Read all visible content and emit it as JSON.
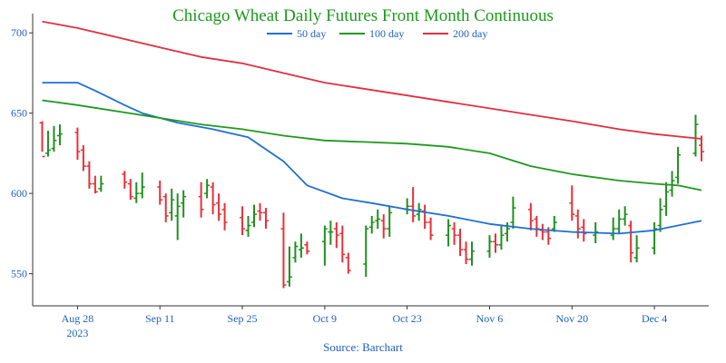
{
  "chart_data": {
    "type": "ohlc-line",
    "title": "Chicago Wheat Daily Futures Front Month Continuous",
    "source": "Source: Barchart",
    "ylim": [
      530,
      712
    ],
    "y_ticks": [
      "550",
      "600",
      "650",
      "700"
    ],
    "x_ticks": [
      {
        "date": "2023-08-28",
        "label": "Aug 28",
        "sublabel": "2023"
      },
      {
        "date": "2023-09-11",
        "label": "Sep 11",
        "sublabel": ""
      },
      {
        "date": "2023-09-25",
        "label": "Sep 25",
        "sublabel": ""
      },
      {
        "date": "2023-10-09",
        "label": "Oct 9",
        "sublabel": ""
      },
      {
        "date": "2023-10-23",
        "label": "Oct 23",
        "sublabel": ""
      },
      {
        "date": "2023-11-06",
        "label": "Nov 6",
        "sublabel": ""
      },
      {
        "date": "2023-11-20",
        "label": "Nov 20",
        "sublabel": ""
      },
      {
        "date": "2023-12-04",
        "label": "Dec 4",
        "sublabel": ""
      }
    ],
    "x_range": [
      "2023-08-21",
      "2023-12-12"
    ],
    "colors": {
      "up": "#1f8f1f",
      "down": "#e8303a",
      "axis": "#333333",
      "title": "#1a9a1a"
    },
    "grid": false,
    "legend_position": "top-center",
    "series": [
      {
        "name": "50 day",
        "color": "#1f6fd0",
        "points": [
          [
            "2023-08-22",
            669
          ],
          [
            "2023-08-28",
            669
          ],
          [
            "2023-08-31",
            664
          ],
          [
            "2023-09-05",
            655
          ],
          [
            "2023-09-08",
            650
          ],
          [
            "2023-09-14",
            644
          ],
          [
            "2023-09-20",
            640
          ],
          [
            "2023-09-26",
            635
          ],
          [
            "2023-10-02",
            620
          ],
          [
            "2023-10-06",
            605
          ],
          [
            "2023-10-12",
            597
          ],
          [
            "2023-10-17",
            594
          ],
          [
            "2023-10-23",
            590
          ],
          [
            "2023-10-30",
            586
          ],
          [
            "2023-11-06",
            581
          ],
          [
            "2023-11-13",
            578
          ],
          [
            "2023-11-20",
            576
          ],
          [
            "2023-11-28",
            575
          ],
          [
            "2023-12-04",
            577
          ],
          [
            "2023-12-12",
            583
          ]
        ]
      },
      {
        "name": "100 day",
        "color": "#1f9a1f",
        "points": [
          [
            "2023-08-22",
            658
          ],
          [
            "2023-08-28",
            655
          ],
          [
            "2023-09-04",
            651
          ],
          [
            "2023-09-11",
            647
          ],
          [
            "2023-09-18",
            643
          ],
          [
            "2023-09-25",
            640
          ],
          [
            "2023-10-02",
            636
          ],
          [
            "2023-10-09",
            633
          ],
          [
            "2023-10-16",
            632
          ],
          [
            "2023-10-23",
            631
          ],
          [
            "2023-10-30",
            629
          ],
          [
            "2023-11-06",
            625
          ],
          [
            "2023-11-13",
            617
          ],
          [
            "2023-11-20",
            612
          ],
          [
            "2023-11-28",
            608
          ],
          [
            "2023-12-04",
            606
          ],
          [
            "2023-12-08",
            605
          ],
          [
            "2023-12-12",
            602
          ]
        ]
      },
      {
        "name": "200 day",
        "color": "#e0303f",
        "points": [
          [
            "2023-08-22",
            707
          ],
          [
            "2023-08-28",
            703
          ],
          [
            "2023-09-04",
            697
          ],
          [
            "2023-09-11",
            691
          ],
          [
            "2023-09-18",
            685
          ],
          [
            "2023-09-25",
            681
          ],
          [
            "2023-10-02",
            675
          ],
          [
            "2023-10-09",
            669
          ],
          [
            "2023-10-16",
            665
          ],
          [
            "2023-10-23",
            661
          ],
          [
            "2023-10-30",
            657
          ],
          [
            "2023-11-06",
            653
          ],
          [
            "2023-11-13",
            649
          ],
          [
            "2023-11-20",
            645
          ],
          [
            "2023-11-28",
            640
          ],
          [
            "2023-12-04",
            637
          ],
          [
            "2023-12-12",
            634
          ]
        ]
      }
    ],
    "ohlc": [
      [
        "2023-08-22",
        644,
        623,
        645,
        626
      ],
      [
        "2023-08-23",
        625,
        627,
        639,
        623
      ],
      [
        "2023-08-24",
        628,
        633,
        642,
        626
      ],
      [
        "2023-08-25",
        636,
        637,
        643,
        630
      ],
      [
        "2023-08-28",
        638,
        626,
        641,
        621
      ],
      [
        "2023-08-29",
        627,
        617,
        630,
        614
      ],
      [
        "2023-08-30",
        617,
        606,
        620,
        603
      ],
      [
        "2023-08-31",
        606,
        601,
        611,
        600
      ],
      [
        "2023-09-01",
        603,
        606,
        611,
        601
      ],
      [
        "2023-09-05",
        612,
        607,
        614,
        603
      ],
      [
        "2023-09-06",
        606,
        598,
        609,
        596
      ],
      [
        "2023-09-07",
        597,
        600,
        607,
        594
      ],
      [
        "2023-09-08",
        600,
        604,
        613,
        597
      ],
      [
        "2023-09-11",
        604,
        596,
        608,
        593
      ],
      [
        "2023-09-12",
        598,
        586,
        600,
        582
      ],
      [
        "2023-09-13",
        588,
        596,
        603,
        583
      ],
      [
        "2023-09-14",
        586,
        592,
        600,
        571
      ],
      [
        "2023-09-15",
        594,
        598,
        602,
        585
      ],
      [
        "2023-09-18",
        598,
        590,
        607,
        585
      ],
      [
        "2023-09-19",
        600,
        605,
        609,
        597
      ],
      [
        "2023-09-20",
        604,
        593,
        607,
        587
      ],
      [
        "2023-09-21",
        594,
        587,
        600,
        583
      ],
      [
        "2023-09-22",
        590,
        582,
        594,
        577
      ],
      [
        "2023-09-25",
        585,
        578,
        592,
        574
      ],
      [
        "2023-09-26",
        577,
        580,
        586,
        573
      ],
      [
        "2023-09-27",
        582,
        587,
        593,
        579
      ],
      [
        "2023-09-28",
        589,
        588,
        594,
        583
      ],
      [
        "2023-09-29",
        588,
        583,
        591,
        578
      ],
      [
        "2023-10-02",
        578,
        543,
        588,
        541
      ],
      [
        "2023-10-03",
        545,
        548,
        567,
        542
      ],
      [
        "2023-10-04",
        560,
        567,
        570,
        557
      ],
      [
        "2023-10-05",
        565,
        566,
        575,
        560
      ],
      [
        "2023-10-06",
        568,
        564,
        570,
        562
      ],
      [
        "2023-10-09",
        570,
        578,
        580,
        555
      ],
      [
        "2023-10-10",
        576,
        576,
        583,
        568
      ],
      [
        "2023-10-11",
        578,
        574,
        582,
        566
      ],
      [
        "2023-10-12",
        575,
        562,
        580,
        557
      ],
      [
        "2023-10-13",
        560,
        552,
        563,
        550
      ],
      [
        "2023-10-16",
        556,
        578,
        580,
        548
      ],
      [
        "2023-10-17",
        579,
        582,
        586,
        575
      ],
      [
        "2023-10-18",
        583,
        584,
        590,
        578
      ],
      [
        "2023-10-19",
        583,
        578,
        587,
        572
      ],
      [
        "2023-10-20",
        578,
        588,
        592,
        573
      ],
      [
        "2023-10-23",
        590,
        592,
        597,
        587
      ],
      [
        "2023-10-24",
        592,
        586,
        604,
        582
      ],
      [
        "2023-10-25",
        587,
        590,
        594,
        583
      ],
      [
        "2023-10-26",
        589,
        582,
        593,
        578
      ],
      [
        "2023-10-27",
        582,
        574,
        585,
        571
      ],
      [
        "2023-10-30",
        574,
        580,
        584,
        567
      ],
      [
        "2023-10-31",
        578,
        574,
        582,
        568
      ],
      [
        "2023-11-01",
        574,
        565,
        578,
        561
      ],
      [
        "2023-11-02",
        565,
        559,
        570,
        556
      ],
      [
        "2023-11-03",
        559,
        564,
        570,
        555
      ],
      [
        "2023-11-06",
        564,
        570,
        574,
        560
      ],
      [
        "2023-11-07",
        570,
        568,
        575,
        563
      ],
      [
        "2023-11-08",
        568,
        574,
        580,
        565
      ],
      [
        "2023-11-09",
        575,
        578,
        582,
        570
      ],
      [
        "2023-11-10",
        582,
        591,
        598,
        578
      ],
      [
        "2023-11-13",
        590,
        583,
        594,
        577
      ],
      [
        "2023-11-14",
        584,
        578,
        586,
        573
      ],
      [
        "2023-11-15",
        577,
        576,
        581,
        571
      ],
      [
        "2023-11-16",
        576,
        572,
        579,
        568
      ],
      [
        "2023-11-17",
        578,
        582,
        586,
        576
      ],
      [
        "2023-11-20",
        594,
        587,
        605,
        583
      ],
      [
        "2023-11-21",
        586,
        578,
        590,
        572
      ],
      [
        "2023-11-22",
        579,
        575,
        584,
        570
      ],
      [
        "2023-11-24",
        574,
        576,
        582,
        569
      ],
      [
        "2023-11-27",
        574,
        578,
        585,
        571
      ],
      [
        "2023-11-28",
        578,
        584,
        590,
        575
      ],
      [
        "2023-11-29",
        584,
        587,
        592,
        580
      ],
      [
        "2023-11-30",
        580,
        563,
        583,
        557
      ],
      [
        "2023-12-01",
        560,
        566,
        574,
        557
      ],
      [
        "2023-12-04",
        566,
        578,
        582,
        562
      ],
      [
        "2023-12-05",
        580,
        590,
        597,
        576
      ],
      [
        "2023-12-06",
        592,
        601,
        607,
        586
      ],
      [
        "2023-12-07",
        602,
        608,
        614,
        598
      ],
      [
        "2023-12-08",
        610,
        624,
        629,
        606
      ],
      [
        "2023-12-11",
        625,
        643,
        649,
        623
      ],
      [
        "2023-12-12",
        630,
        626,
        636,
        620
      ]
    ]
  }
}
